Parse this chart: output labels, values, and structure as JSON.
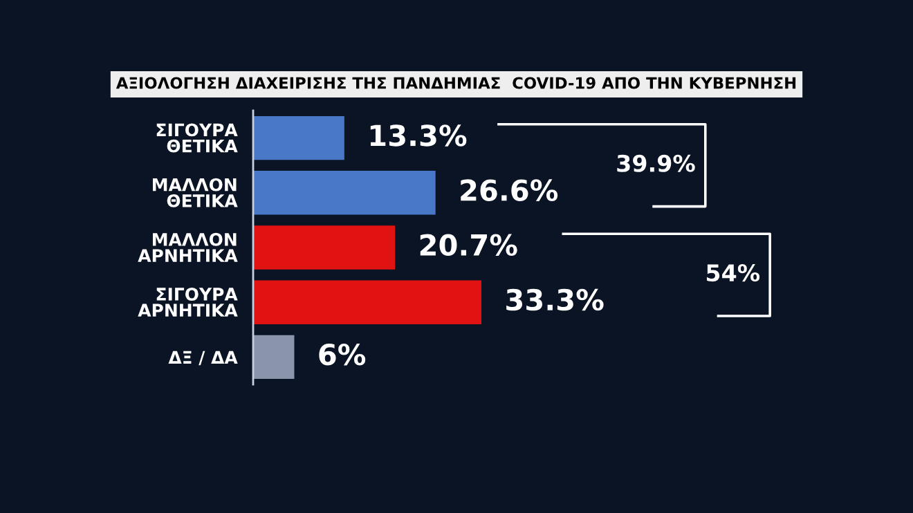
{
  "chart_data": {
    "type": "bar",
    "orientation": "horizontal",
    "title": "ΑΞΙΟΛΟΓΗΣΗ ΔΙΑΧΕΙΡΙΣΗΣ ΤΗΣ ΠΑΝΔΗΜΙΑΣ  COVID-19 ΑΠΟ ΤΗΝ ΚΥΒΕΡΝΗΣΗ",
    "categories": [
      "ΣΙΓΟΥΡΑ\nΘΕΤΙΚΑ",
      "ΜΑΛΛΟΝ\nΘΕΤΙΚΑ",
      "ΜΑΛΛΟΝ\nΑΡΝΗΤΙΚΑ",
      "ΣΙΓΟΥΡΑ\nΑΡΝΗΤΙΚΑ",
      "ΔΞ / ΔΑ"
    ],
    "values": [
      13.3,
      26.6,
      20.7,
      33.3,
      6
    ],
    "colors": [
      "#4a78c8",
      "#4a78c8",
      "#e01212",
      "#e01212",
      "#8a94aa"
    ],
    "value_labels": [
      "13.3%",
      "26.6%",
      "20.7%",
      "33.3%",
      "6%"
    ],
    "annotations": [
      "39.9%",
      "54%"
    ],
    "grid": false,
    "legend": false
  }
}
